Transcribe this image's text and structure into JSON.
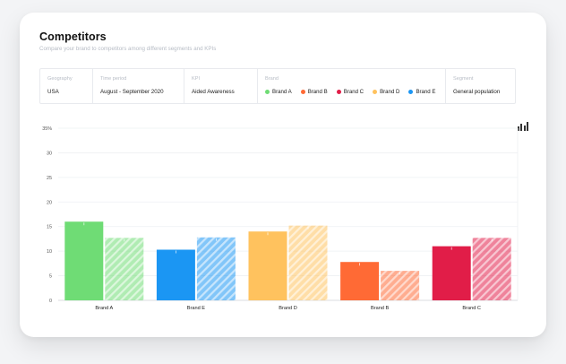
{
  "page": {
    "title": "Competitors",
    "subtitle": "Compare your brand to competitors among different segments and KPIs"
  },
  "filters": {
    "geography": {
      "label": "Geography",
      "value": "USA"
    },
    "time_period": {
      "label": "Time period",
      "value": "August - September 2020"
    },
    "kpi": {
      "label": "KPI",
      "value": "Aided Awareness"
    },
    "brand": {
      "label": "Brand",
      "items": [
        {
          "name": "Brand A",
          "color": "#6fdc75"
        },
        {
          "name": "Brand B",
          "color": "#ff6a35"
        },
        {
          "name": "Brand C",
          "color": "#e11d48"
        },
        {
          "name": "Brand D",
          "color": "#ffc25e"
        },
        {
          "name": "Brand E",
          "color": "#1b96f3"
        }
      ]
    },
    "segment": {
      "label": "Segment",
      "value": "General population"
    }
  },
  "toolbar": {
    "chart_type_icon": "bar-chart-icon"
  },
  "chart_data": {
    "type": "bar",
    "categories": [
      "Brand A",
      "Brand E",
      "Brand D",
      "Brand B",
      "Brand C"
    ],
    "series": [
      {
        "values": [
          16,
          10.3,
          14,
          7.8,
          11
        ],
        "fill": "solid"
      },
      {
        "values": [
          12.7,
          12.8,
          15.2,
          6,
          12.7
        ],
        "fill": "hatched"
      }
    ],
    "colors": [
      "#6fdc75",
      "#1b96f3",
      "#ffc25e",
      "#ff6a35",
      "#e11d48"
    ],
    "y_ticks": [
      "0",
      "5",
      "10",
      "15",
      "20",
      "25",
      "30",
      "35%"
    ],
    "ylim": [
      0,
      35
    ],
    "grid": true
  }
}
